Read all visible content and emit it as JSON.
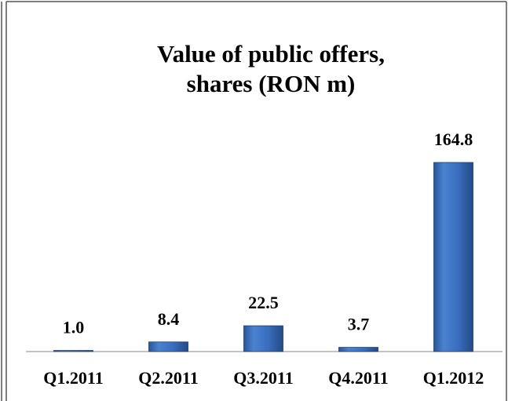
{
  "chart_data": {
    "type": "bar",
    "title": [
      "Value of public offers,",
      "shares (RON m)"
    ],
    "categories": [
      "Q1.2011",
      "Q2.2011",
      "Q3.2011",
      "Q4.2011",
      "Q1.2012"
    ],
    "values": [
      1.0,
      8.4,
      22.5,
      3.7,
      164.8
    ],
    "value_labels": [
      "1.0",
      "8.4",
      "22.5",
      "3.7",
      "164.8"
    ],
    "color": "#3a6fc0"
  }
}
